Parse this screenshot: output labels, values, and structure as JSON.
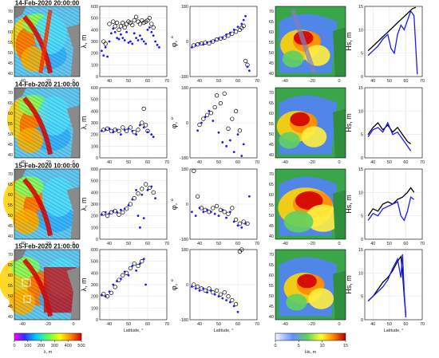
{
  "panel_titles": [
    "14-Feb-2020 20:00:00",
    "14-Feb-2020 21:00:00",
    "15-Feb-2020 10:00:00",
    "15-Feb-2020 21:00:00"
  ],
  "columns": {
    "lambda_ylabel": "λ, m",
    "phi_ylabel": "φ, °",
    "hs_ylabel": "Hs, m",
    "xlabel": "Latitude, °"
  },
  "colorbars": {
    "lambda": {
      "label": "λ, m",
      "ticks": [
        "0",
        "100",
        "200",
        "300",
        "400",
        "500"
      ]
    },
    "hs": {
      "label": "Hs, m",
      "ticks": [
        "0",
        "5",
        "10",
        "15"
      ]
    }
  },
  "map_ticks": {
    "lat": [
      "70",
      "65",
      "60",
      "55",
      "50",
      "45",
      "40"
    ],
    "lon": [
      "-40",
      "-20",
      "0"
    ]
  },
  "colors": {
    "black_series": "#000000",
    "blue_series": "#1a1aff",
    "land": "#3c8c46",
    "grid": "#d8d8d8"
  },
  "chart_data": [
    {
      "type": "scatter",
      "row": 0,
      "ylabel": "λ, m",
      "xlim": [
        35,
        70
      ],
      "ylim": [
        0,
        600
      ],
      "xticks": [
        "40",
        "50",
        "60",
        "70"
      ],
      "yticks": [
        "0",
        "100",
        "200",
        "300",
        "400",
        "500",
        "600"
      ],
      "series": [
        {
          "marker": "circle",
          "color": "#000000",
          "x": [
            37,
            38,
            40,
            42,
            43,
            44,
            45,
            46,
            47,
            48,
            49,
            50,
            51,
            52,
            53,
            54,
            55,
            56,
            57,
            58,
            59,
            60,
            61,
            62,
            63
          ],
          "y": [
            300,
            280,
            450,
            470,
            430,
            460,
            400,
            430,
            460,
            420,
            450,
            470,
            460,
            440,
            480,
            510,
            470,
            450,
            480,
            460,
            470,
            480,
            500,
            450,
            420
          ]
        },
        {
          "marker": "dot",
          "color": "#1a1aff",
          "x": [
            36,
            37,
            38,
            39,
            40,
            41,
            42,
            43,
            44,
            45,
            46,
            47,
            48,
            49,
            50,
            51,
            52,
            53,
            54,
            55,
            56,
            57,
            58,
            59,
            60,
            61,
            62,
            63,
            64,
            65,
            66
          ],
          "y": [
            220,
            180,
            250,
            170,
            300,
            370,
            410,
            380,
            330,
            320,
            360,
            330,
            310,
            380,
            290,
            300,
            280,
            370,
            330,
            310,
            350,
            320,
            300,
            280,
            400,
            420,
            380,
            350,
            300,
            270,
            250
          ]
        }
      ]
    },
    {
      "type": "scatter",
      "row": 0,
      "ylabel": "φ, °",
      "xlim": [
        35,
        70
      ],
      "ylim": [
        -180,
        180
      ],
      "xticks": [
        "40",
        "50",
        "60",
        "70"
      ],
      "yticks": [
        "-180",
        "0",
        "180"
      ],
      "series": [
        {
          "marker": "circle",
          "color": "#000000",
          "x": [
            37,
            39,
            41,
            43,
            45,
            47,
            49,
            51,
            53,
            55,
            57,
            59,
            61,
            62,
            63,
            64,
            65
          ],
          "y": [
            -20,
            -15,
            -10,
            -5,
            -10,
            0,
            10,
            15,
            20,
            30,
            40,
            50,
            60,
            70,
            80,
            -100,
            -120
          ]
        },
        {
          "marker": "dot",
          "color": "#1a1aff",
          "x": [
            36,
            38,
            40,
            42,
            44,
            46,
            48,
            50,
            52,
            54,
            56,
            58,
            60,
            62,
            63,
            64,
            65,
            66
          ],
          "y": [
            -30,
            -20,
            -10,
            -15,
            -5,
            0,
            5,
            15,
            20,
            35,
            45,
            60,
            75,
            90,
            110,
            130,
            -130,
            -150
          ]
        }
      ]
    },
    {
      "type": "line",
      "row": 0,
      "ylabel": "Hs, m",
      "xlim": [
        35,
        70
      ],
      "ylim": [
        0,
        15
      ],
      "xticks": [
        "40",
        "50",
        "60",
        "70"
      ],
      "yticks": [
        "0",
        "5",
        "10",
        "15"
      ],
      "series": [
        {
          "color": "#000000",
          "x": [
            37,
            40,
            43,
            46,
            49,
            52,
            55,
            58,
            61,
            64,
            66
          ],
          "y": [
            5.5,
            6.5,
            7.5,
            8.5,
            9.5,
            10.5,
            11.5,
            12.5,
            13.5,
            14.5,
            14.8
          ]
        },
        {
          "color": "#1a1aff",
          "x": [
            37,
            40,
            43,
            46,
            49,
            51,
            53,
            55,
            57,
            59,
            61,
            63,
            65,
            67
          ],
          "y": [
            4.5,
            5.5,
            6.5,
            8,
            9,
            6,
            5,
            9,
            11,
            10,
            12,
            14,
            13,
            0.5
          ]
        }
      ]
    },
    {
      "type": "scatter",
      "row": 1,
      "ylabel": "λ, m",
      "xlim": [
        35,
        70
      ],
      "ylim": [
        0,
        600
      ],
      "xticks": [
        "40",
        "50",
        "60",
        "70"
      ],
      "yticks": [
        "0",
        "100",
        "200",
        "300",
        "400",
        "500",
        "600"
      ],
      "series": [
        {
          "marker": "circle",
          "color": "#000000",
          "x": [
            37,
            39,
            41,
            43,
            45,
            47,
            49,
            51,
            53,
            55,
            57,
            58,
            59,
            60
          ],
          "y": [
            240,
            250,
            230,
            240,
            230,
            260,
            230,
            260,
            220,
            240,
            300,
            420,
            280,
            230
          ]
        },
        {
          "marker": "dot",
          "color": "#1a1aff",
          "x": [
            36,
            38,
            40,
            42,
            44,
            46,
            48,
            50,
            52,
            54,
            56,
            58,
            60,
            62,
            63
          ],
          "y": [
            230,
            240,
            250,
            220,
            240,
            200,
            240,
            250,
            230,
            200,
            280,
            260,
            220,
            200,
            180
          ]
        }
      ]
    },
    {
      "type": "scatter",
      "row": 1,
      "ylabel": "φ, °",
      "xlim": [
        35,
        70
      ],
      "ylim": [
        -180,
        180
      ],
      "xticks": [
        "40",
        "50",
        "60",
        "70"
      ],
      "yticks": [
        "-180",
        "0",
        "180"
      ],
      "series": [
        {
          "marker": "circle",
          "color": "#000000",
          "x": [
            40,
            42,
            44,
            46,
            48,
            49,
            51,
            53,
            55,
            57,
            59,
            61
          ],
          "y": [
            -10,
            20,
            40,
            50,
            80,
            140,
            100,
            150,
            -30,
            20,
            60,
            -40
          ]
        },
        {
          "marker": "dot",
          "color": "#1a1aff",
          "x": [
            39,
            41,
            43,
            45,
            47,
            50,
            52,
            54,
            56,
            58,
            60,
            62,
            63
          ],
          "y": [
            -40,
            0,
            30,
            60,
            10,
            -50,
            -100,
            -120,
            -90,
            -150,
            -60,
            -170,
            -110
          ]
        }
      ]
    },
    {
      "type": "line",
      "row": 1,
      "ylabel": "Hs, m",
      "xlim": [
        35,
        70
      ],
      "ylim": [
        0,
        15
      ],
      "xticks": [
        "40",
        "50",
        "60",
        "70"
      ],
      "yticks": [
        "0",
        "5",
        "10",
        "15"
      ],
      "series": [
        {
          "color": "#000000",
          "x": [
            37,
            40,
            43,
            46,
            49,
            52,
            55,
            58,
            61,
            63
          ],
          "y": [
            5,
            6.5,
            7.5,
            6,
            7,
            5.5,
            6.5,
            5,
            3.5,
            3
          ]
        },
        {
          "color": "#1a1aff",
          "x": [
            37,
            40,
            43,
            46,
            49,
            52,
            55,
            58,
            61,
            63
          ],
          "y": [
            4.5,
            6,
            6.5,
            5.5,
            7.5,
            5,
            5.5,
            4,
            2.5,
            1.5
          ]
        }
      ]
    },
    {
      "type": "scatter",
      "row": 2,
      "ylabel": "λ, m",
      "xlim": [
        35,
        70
      ],
      "ylim": [
        0,
        600
      ],
      "xticks": [
        "40",
        "50",
        "60",
        "70"
      ],
      "yticks": [
        "0",
        "100",
        "200",
        "300",
        "400",
        "500",
        "600"
      ],
      "series": [
        {
          "marker": "circle",
          "color": "#000000",
          "x": [
            37,
            39,
            41,
            43,
            45,
            47,
            49,
            51,
            53,
            55,
            57,
            59,
            61,
            63
          ],
          "y": [
            220,
            200,
            230,
            240,
            210,
            230,
            260,
            300,
            350,
            390,
            430,
            470,
            440,
            400
          ]
        },
        {
          "marker": "dot",
          "color": "#1a1aff",
          "x": [
            36,
            38,
            40,
            42,
            44,
            46,
            48,
            50,
            52,
            54,
            55,
            56,
            57,
            58,
            60,
            62,
            64
          ],
          "y": [
            210,
            230,
            220,
            240,
            230,
            250,
            260,
            290,
            340,
            420,
            200,
            100,
            380,
            180,
            420,
            450,
            350
          ]
        }
      ]
    },
    {
      "type": "scatter",
      "row": 2,
      "ylabel": "φ, °",
      "xlim": [
        35,
        70
      ],
      "ylim": [
        -180,
        180
      ],
      "xticks": [
        "40",
        "50",
        "60",
        "70"
      ],
      "yticks": [
        "-180",
        "0",
        "180"
      ],
      "series": [
        {
          "marker": "circle",
          "color": "#000000",
          "x": [
            37,
            39,
            41,
            43,
            45,
            47,
            49,
            51,
            53,
            55,
            57,
            59,
            61,
            63,
            65
          ],
          "y": [
            170,
            40,
            -20,
            -30,
            -40,
            -20,
            -10,
            -30,
            -40,
            -50,
            -20,
            -80,
            -100,
            -90,
            -100
          ]
        },
        {
          "marker": "dot",
          "color": "#1a1aff",
          "x": [
            36,
            38,
            40,
            42,
            44,
            46,
            48,
            50,
            52,
            54,
            56,
            58,
            60,
            62,
            64,
            66
          ],
          "y": [
            -40,
            -60,
            -20,
            -40,
            -30,
            -40,
            -50,
            -60,
            -30,
            -70,
            -40,
            -90,
            -110,
            -120,
            -100,
            40
          ]
        }
      ]
    },
    {
      "type": "line",
      "row": 2,
      "ylabel": "Hs, m",
      "xlim": [
        35,
        70
      ],
      "ylim": [
        0,
        15
      ],
      "xticks": [
        "40",
        "50",
        "60",
        "70"
      ],
      "yticks": [
        "0",
        "5",
        "10",
        "15"
      ],
      "series": [
        {
          "color": "#000000",
          "x": [
            37,
            40,
            43,
            46,
            49,
            52,
            55,
            58,
            61,
            63,
            65
          ],
          "y": [
            5,
            6.5,
            6,
            7.5,
            8,
            7.5,
            8.5,
            9,
            10,
            11,
            10
          ]
        },
        {
          "color": "#1a1aff",
          "x": [
            37,
            40,
            43,
            46,
            49,
            52,
            55,
            57,
            59,
            61,
            63,
            65
          ],
          "y": [
            4,
            5.5,
            5,
            6.5,
            7,
            7.5,
            8,
            5,
            4,
            6,
            9,
            8.5
          ]
        }
      ]
    },
    {
      "type": "scatter",
      "row": 3,
      "ylabel": "λ, m",
      "xlim": [
        35,
        70
      ],
      "ylim": [
        0,
        600
      ],
      "xticks": [
        "40",
        "50",
        "60",
        "70"
      ],
      "yticks": [
        "0",
        "100",
        "200",
        "300",
        "400",
        "500",
        "600"
      ],
      "series": [
        {
          "marker": "circle",
          "color": "#000000",
          "x": [
            37,
            39,
            41,
            43,
            45,
            47,
            49,
            51,
            53,
            55,
            57
          ],
          "y": [
            220,
            200,
            230,
            280,
            340,
            380,
            400,
            440,
            480,
            460,
            500
          ]
        },
        {
          "marker": "dot",
          "color": "#1a1aff",
          "x": [
            36,
            38,
            40,
            42,
            44,
            46,
            48,
            50,
            52,
            54,
            56,
            58,
            59
          ],
          "y": [
            210,
            200,
            240,
            300,
            330,
            350,
            410,
            380,
            460,
            420,
            480,
            520,
            300
          ]
        }
      ]
    },
    {
      "type": "scatter",
      "row": 3,
      "ylabel": "φ, °",
      "xlim": [
        35,
        70
      ],
      "ylim": [
        -180,
        180
      ],
      "xticks": [
        "40",
        "50",
        "60",
        "70"
      ],
      "yticks": [
        "-180",
        "0",
        "180"
      ],
      "series": [
        {
          "marker": "circle",
          "color": "#000000",
          "x": [
            37,
            39,
            41,
            43,
            45,
            47,
            49,
            51,
            53,
            55,
            57,
            59,
            61,
            62
          ],
          "y": [
            0,
            -10,
            -20,
            -30,
            -20,
            -40,
            -30,
            -50,
            -40,
            -60,
            -80,
            -100,
            170,
            180
          ]
        },
        {
          "marker": "dot",
          "color": "#1a1aff",
          "x": [
            36,
            38,
            40,
            42,
            44,
            46,
            48,
            50,
            52,
            54,
            56,
            58,
            60
          ],
          "y": [
            -10,
            -20,
            -30,
            -20,
            -40,
            -30,
            -50,
            -60,
            -70,
            -80,
            -90,
            -110,
            -140
          ]
        }
      ]
    },
    {
      "type": "line",
      "row": 3,
      "ylabel": "Hs, m",
      "xlim": [
        35,
        70
      ],
      "ylim": [
        0,
        15
      ],
      "xticks": [
        "40",
        "50",
        "60",
        "70"
      ],
      "yticks": [
        "0",
        "5",
        "10",
        "15"
      ],
      "series": [
        {
          "color": "#000000",
          "x": [
            37,
            40,
            43,
            46,
            49,
            52,
            55,
            57,
            58,
            59,
            60
          ],
          "y": [
            4,
            5,
            6.5,
            8,
            9,
            10.5,
            12.5,
            13.5,
            10,
            5,
            1
          ]
        },
        {
          "color": "#1a1aff",
          "x": [
            37,
            40,
            43,
            46,
            49,
            52,
            55,
            56,
            57,
            58,
            59,
            60
          ],
          "y": [
            4,
            5,
            6,
            7,
            8.5,
            11,
            13,
            11,
            9,
            14,
            6,
            0.5
          ]
        }
      ]
    }
  ]
}
